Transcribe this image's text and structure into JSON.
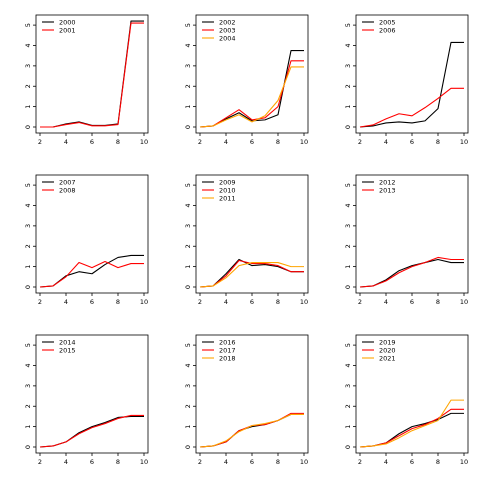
{
  "series_colors": [
    "#000000",
    "#ff0000",
    "#ffa500"
  ],
  "chart_data": [
    {
      "type": "line",
      "x": [
        2,
        3,
        4,
        5,
        6,
        7,
        8,
        9,
        10
      ],
      "xlim": [
        2,
        10
      ],
      "ylim": [
        0,
        5.3
      ],
      "xticks": [
        "2",
        "4",
        "6",
        "8",
        "10"
      ],
      "yticks": [
        "0",
        "1",
        "2",
        "3",
        "4",
        "5"
      ],
      "legend_position": "top-left",
      "grid": false,
      "series": [
        {
          "name": "2000",
          "values": [
            0,
            0,
            0.15,
            0.25,
            0.08,
            0.08,
            0.15,
            5.2,
            5.2
          ]
        },
        {
          "name": "2001",
          "values": [
            0,
            0,
            0.12,
            0.22,
            0.06,
            0.06,
            0.12,
            5.1,
            5.1
          ]
        }
      ]
    },
    {
      "type": "line",
      "x": [
        2,
        3,
        4,
        5,
        6,
        7,
        8,
        9,
        10
      ],
      "xlim": [
        2,
        10
      ],
      "ylim": [
        0,
        5.3
      ],
      "xticks": [
        "2",
        "4",
        "6",
        "8",
        "10"
      ],
      "yticks": [
        "0",
        "1",
        "2",
        "3",
        "4",
        "5"
      ],
      "legend_position": "top-left",
      "grid": false,
      "series": [
        {
          "name": "2002",
          "values": [
            0,
            0.05,
            0.4,
            0.7,
            0.3,
            0.35,
            0.6,
            3.75,
            3.75
          ]
        },
        {
          "name": "2003",
          "values": [
            0,
            0.05,
            0.45,
            0.85,
            0.35,
            0.45,
            1.0,
            3.25,
            3.25
          ]
        },
        {
          "name": "2004",
          "values": [
            0,
            0.05,
            0.35,
            0.6,
            0.25,
            0.55,
            1.3,
            2.95,
            2.95
          ]
        }
      ]
    },
    {
      "type": "line",
      "x": [
        2,
        3,
        4,
        5,
        6,
        7,
        8,
        9,
        10
      ],
      "xlim": [
        2,
        10
      ],
      "ylim": [
        0,
        5.3
      ],
      "xticks": [
        "2",
        "4",
        "6",
        "8",
        "10"
      ],
      "yticks": [
        "0",
        "1",
        "2",
        "3",
        "4",
        "5"
      ],
      "legend_position": "top-left",
      "grid": false,
      "series": [
        {
          "name": "2005",
          "values": [
            0,
            0.05,
            0.2,
            0.25,
            0.2,
            0.3,
            0.9,
            4.15,
            4.15
          ]
        },
        {
          "name": "2006",
          "values": [
            0,
            0.1,
            0.4,
            0.65,
            0.55,
            0.95,
            1.4,
            1.9,
            1.9
          ]
        }
      ]
    },
    {
      "type": "line",
      "x": [
        2,
        3,
        4,
        5,
        6,
        7,
        8,
        9,
        10
      ],
      "xlim": [
        2,
        10
      ],
      "ylim": [
        0,
        5.3
      ],
      "xticks": [
        "2",
        "4",
        "6",
        "8",
        "10"
      ],
      "yticks": [
        "0",
        "1",
        "2",
        "3",
        "4",
        "5"
      ],
      "legend_position": "top-left",
      "grid": false,
      "series": [
        {
          "name": "2007",
          "values": [
            0,
            0.05,
            0.55,
            0.75,
            0.65,
            1.1,
            1.45,
            1.55,
            1.55
          ]
        },
        {
          "name": "2008",
          "values": [
            0,
            0.05,
            0.5,
            1.2,
            0.95,
            1.25,
            0.95,
            1.15,
            1.15
          ]
        }
      ]
    },
    {
      "type": "line",
      "x": [
        2,
        3,
        4,
        5,
        6,
        7,
        8,
        9,
        10
      ],
      "xlim": [
        2,
        10
      ],
      "ylim": [
        0,
        5.3
      ],
      "xticks": [
        "2",
        "4",
        "6",
        "8",
        "10"
      ],
      "yticks": [
        "0",
        "1",
        "2",
        "3",
        "4",
        "5"
      ],
      "legend_position": "top-left",
      "grid": false,
      "series": [
        {
          "name": "2009",
          "values": [
            0,
            0.05,
            0.65,
            1.35,
            1.05,
            1.1,
            1.0,
            0.75,
            0.75
          ]
        },
        {
          "name": "2010",
          "values": [
            0,
            0.05,
            0.55,
            1.3,
            1.15,
            1.15,
            1.05,
            0.75,
            0.75
          ]
        },
        {
          "name": "2011",
          "values": [
            0,
            0.05,
            0.45,
            1.05,
            1.2,
            1.2,
            1.2,
            1.0,
            1.0
          ]
        }
      ]
    },
    {
      "type": "line",
      "x": [
        2,
        3,
        4,
        5,
        6,
        7,
        8,
        9,
        10
      ],
      "xlim": [
        2,
        10
      ],
      "ylim": [
        0,
        5.3
      ],
      "xticks": [
        "2",
        "4",
        "6",
        "8",
        "10"
      ],
      "yticks": [
        "0",
        "1",
        "2",
        "3",
        "4",
        "5"
      ],
      "legend_position": "top-left",
      "grid": false,
      "series": [
        {
          "name": "2012",
          "values": [
            0,
            0.05,
            0.35,
            0.8,
            1.05,
            1.2,
            1.35,
            1.2,
            1.2
          ]
        },
        {
          "name": "2013",
          "values": [
            0,
            0.05,
            0.3,
            0.7,
            1.0,
            1.2,
            1.45,
            1.35,
            1.35
          ]
        }
      ]
    },
    {
      "type": "line",
      "x": [
        2,
        3,
        4,
        5,
        6,
        7,
        8,
        9,
        10
      ],
      "xlim": [
        2,
        10
      ],
      "ylim": [
        0,
        5.3
      ],
      "xticks": [
        "2",
        "4",
        "6",
        "8",
        "10"
      ],
      "yticks": [
        "0",
        "1",
        "2",
        "3",
        "4",
        "5"
      ],
      "legend_position": "top-left",
      "grid": false,
      "series": [
        {
          "name": "2014",
          "values": [
            0,
            0.05,
            0.25,
            0.7,
            1.0,
            1.2,
            1.45,
            1.5,
            1.5
          ]
        },
        {
          "name": "2015",
          "values": [
            0,
            0.05,
            0.25,
            0.65,
            0.95,
            1.15,
            1.4,
            1.55,
            1.55
          ]
        }
      ]
    },
    {
      "type": "line",
      "x": [
        2,
        3,
        4,
        5,
        6,
        7,
        8,
        9,
        10
      ],
      "xlim": [
        2,
        10
      ],
      "ylim": [
        0,
        5.3
      ],
      "xticks": [
        "2",
        "4",
        "6",
        "8",
        "10"
      ],
      "yticks": [
        "0",
        "1",
        "2",
        "3",
        "4",
        "5"
      ],
      "legend_position": "top-left",
      "grid": false,
      "series": [
        {
          "name": "2016",
          "values": [
            0,
            0.05,
            0.25,
            0.8,
            1.0,
            1.1,
            1.3,
            1.6,
            1.6
          ]
        },
        {
          "name": "2017",
          "values": [
            0,
            0.05,
            0.25,
            0.8,
            1.05,
            1.1,
            1.3,
            1.65,
            1.65
          ]
        },
        {
          "name": "2018",
          "values": [
            0,
            0.05,
            0.3,
            0.75,
            1.05,
            1.15,
            1.3,
            1.6,
            1.6
          ]
        }
      ]
    },
    {
      "type": "line",
      "x": [
        2,
        3,
        4,
        5,
        6,
        7,
        8,
        9,
        10
      ],
      "xlim": [
        2,
        10
      ],
      "ylim": [
        0,
        5.3
      ],
      "xticks": [
        "2",
        "4",
        "6",
        "8",
        "10"
      ],
      "yticks": [
        "0",
        "1",
        "2",
        "3",
        "4",
        "5"
      ],
      "legend_position": "top-left",
      "grid": false,
      "series": [
        {
          "name": "2019",
          "values": [
            0,
            0.05,
            0.2,
            0.65,
            1.0,
            1.15,
            1.35,
            1.65,
            1.65
          ]
        },
        {
          "name": "2020",
          "values": [
            0,
            0.05,
            0.2,
            0.55,
            0.9,
            1.1,
            1.4,
            1.85,
            1.85
          ]
        },
        {
          "name": "2021",
          "values": [
            0,
            0.05,
            0.15,
            0.45,
            0.8,
            1.05,
            1.3,
            2.3,
            2.3
          ]
        }
      ]
    }
  ]
}
